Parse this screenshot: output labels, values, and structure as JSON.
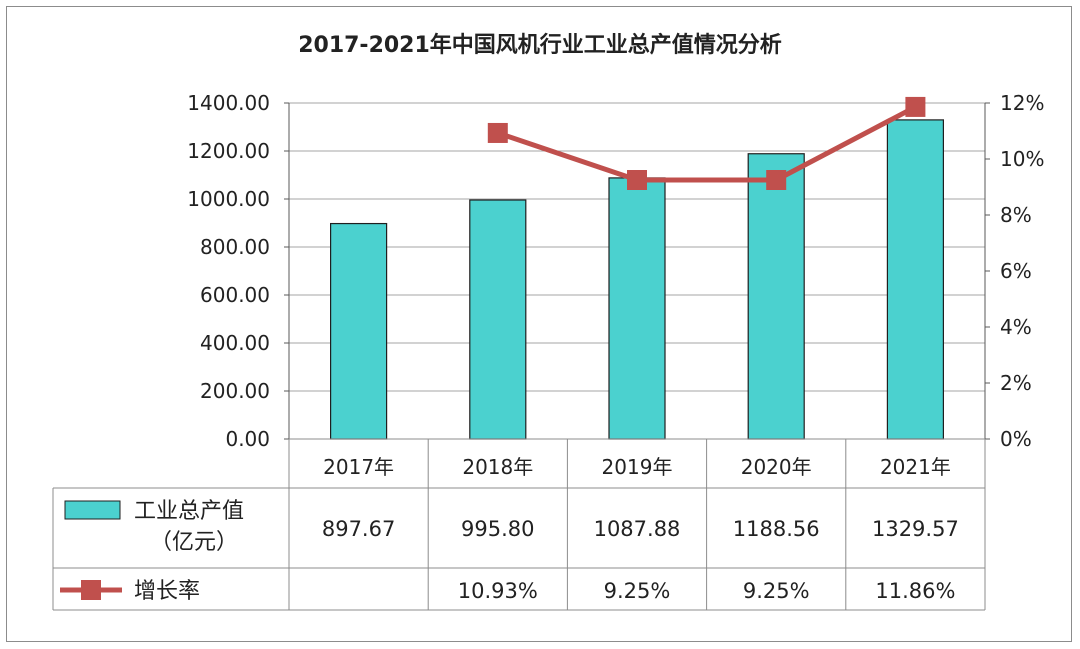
{
  "chart_data": {
    "type": "bar",
    "title": "2017-2021年中国风机行业工业总产值情况分析",
    "categories": [
      "2017年",
      "2018年",
      "2019年",
      "2020年",
      "2021年"
    ],
    "series": [
      {
        "name": "工业总产值（亿元）",
        "kind": "bar",
        "axis": "left",
        "color": "#4bd1cf",
        "values": [
          897.67,
          995.8,
          1087.88,
          1188.56,
          1329.57
        ],
        "labels": [
          "897.67",
          "995.80",
          "1087.88",
          "1188.56",
          "1329.57"
        ]
      },
      {
        "name": "增长率",
        "kind": "line",
        "axis": "right",
        "color": "#c0504d",
        "values": [
          null,
          10.93,
          9.25,
          9.25,
          11.86
        ],
        "labels": [
          "",
          "10.93%",
          "9.25%",
          "9.25%",
          "11.86%"
        ]
      }
    ],
    "y_left": {
      "min": 0,
      "max": 1400,
      "ticks": [
        "0.00",
        "200.00",
        "400.00",
        "600.00",
        "800.00",
        "1000.00",
        "1200.00",
        "1400.00"
      ]
    },
    "y_right": {
      "min": 0,
      "max": 12,
      "ticks": [
        "0%",
        "2%",
        "4%",
        "6%",
        "8%",
        "10%",
        "12%"
      ]
    },
    "grid": true,
    "legend": "data-table",
    "data_table": true
  }
}
